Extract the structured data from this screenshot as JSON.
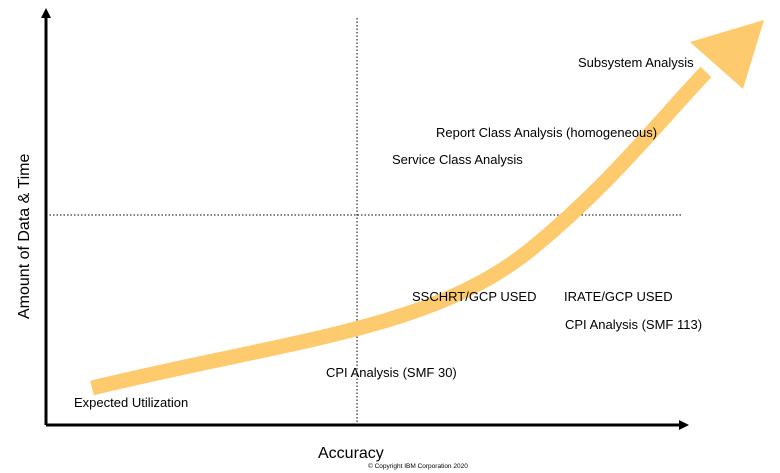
{
  "colors": {
    "arrow": "#FDCB6E",
    "axis": "#000000",
    "text": "#000000"
  },
  "axes": {
    "x_title": "Accuracy",
    "y_title": "Amount of Data & Time"
  },
  "labels": {
    "subsystem": "Subsystem Analysis",
    "report_class": "Report Class Analysis (homogeneous)",
    "service_class": "Service Class Analysis",
    "sschrt": "SSCHRT/GCP USED",
    "irate": "IRATE/GCP USED",
    "cpi_smf113": "CPI Analysis (SMF 113)",
    "cpi_smf30": "CPI Analysis (SMF 30)",
    "expected": "Expected Utilization"
  },
  "footer": {
    "copyright": "© Copyright IBM Corporation 2020"
  }
}
